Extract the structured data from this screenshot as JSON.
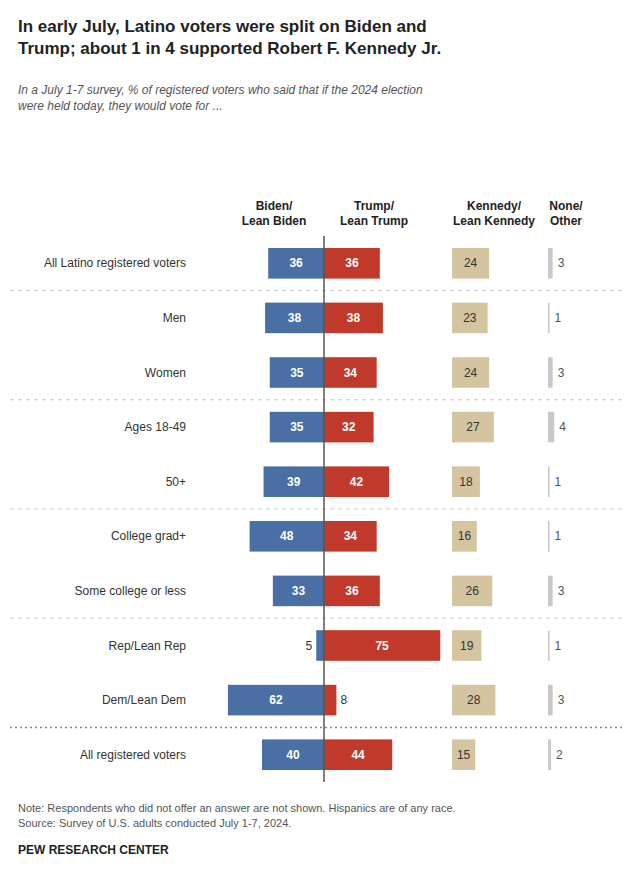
{
  "chart_data": {
    "type": "bar",
    "orientation": "horizontal",
    "title": "In early July, Latino voters were split on Biden and\nTrump; about 1 in 4 supported Robert F. Kennedy Jr.",
    "subtitle": "In a July 1-7 survey, % of registered voters who said that if the 2024 election\nwere held today, they would vote for ...",
    "categories": [
      "All Latino registered voters",
      "Men",
      "Women",
      "Ages 18-49",
      "50+",
      "College grad+",
      "Some college or less",
      "Rep/Lean Rep",
      "Dem/Lean Dem",
      "All registered voters"
    ],
    "series": [
      {
        "name": "Biden/\nLean Biden",
        "color": "#4a6fa5",
        "values": [
          36,
          38,
          35,
          35,
          39,
          48,
          33,
          5,
          62,
          40
        ]
      },
      {
        "name": "Trump/\nLean Trump",
        "color": "#c0392b",
        "values": [
          36,
          38,
          34,
          32,
          42,
          34,
          36,
          75,
          8,
          44
        ]
      },
      {
        "name": "Kennedy/\nLean Kennedy",
        "color": "#d4c5a0",
        "values": [
          24,
          23,
          24,
          27,
          18,
          16,
          26,
          19,
          28,
          15
        ]
      },
      {
        "name": "None/\nOther",
        "color": "#c8c8c8",
        "values": [
          3,
          1,
          3,
          4,
          1,
          1,
          3,
          1,
          3,
          2
        ]
      }
    ],
    "xlim": [
      0,
      80
    ],
    "data_labels": true,
    "tick_labels": "y",
    "grid": false,
    "annotations": [
      "Note: Respondents who did not offer an answer are not shown. Hispanics are of any race.\nSource: Survey of U.S. adults conducted July 1-7, 2024.",
      "PEW RESEARCH CENTER"
    ]
  }
}
